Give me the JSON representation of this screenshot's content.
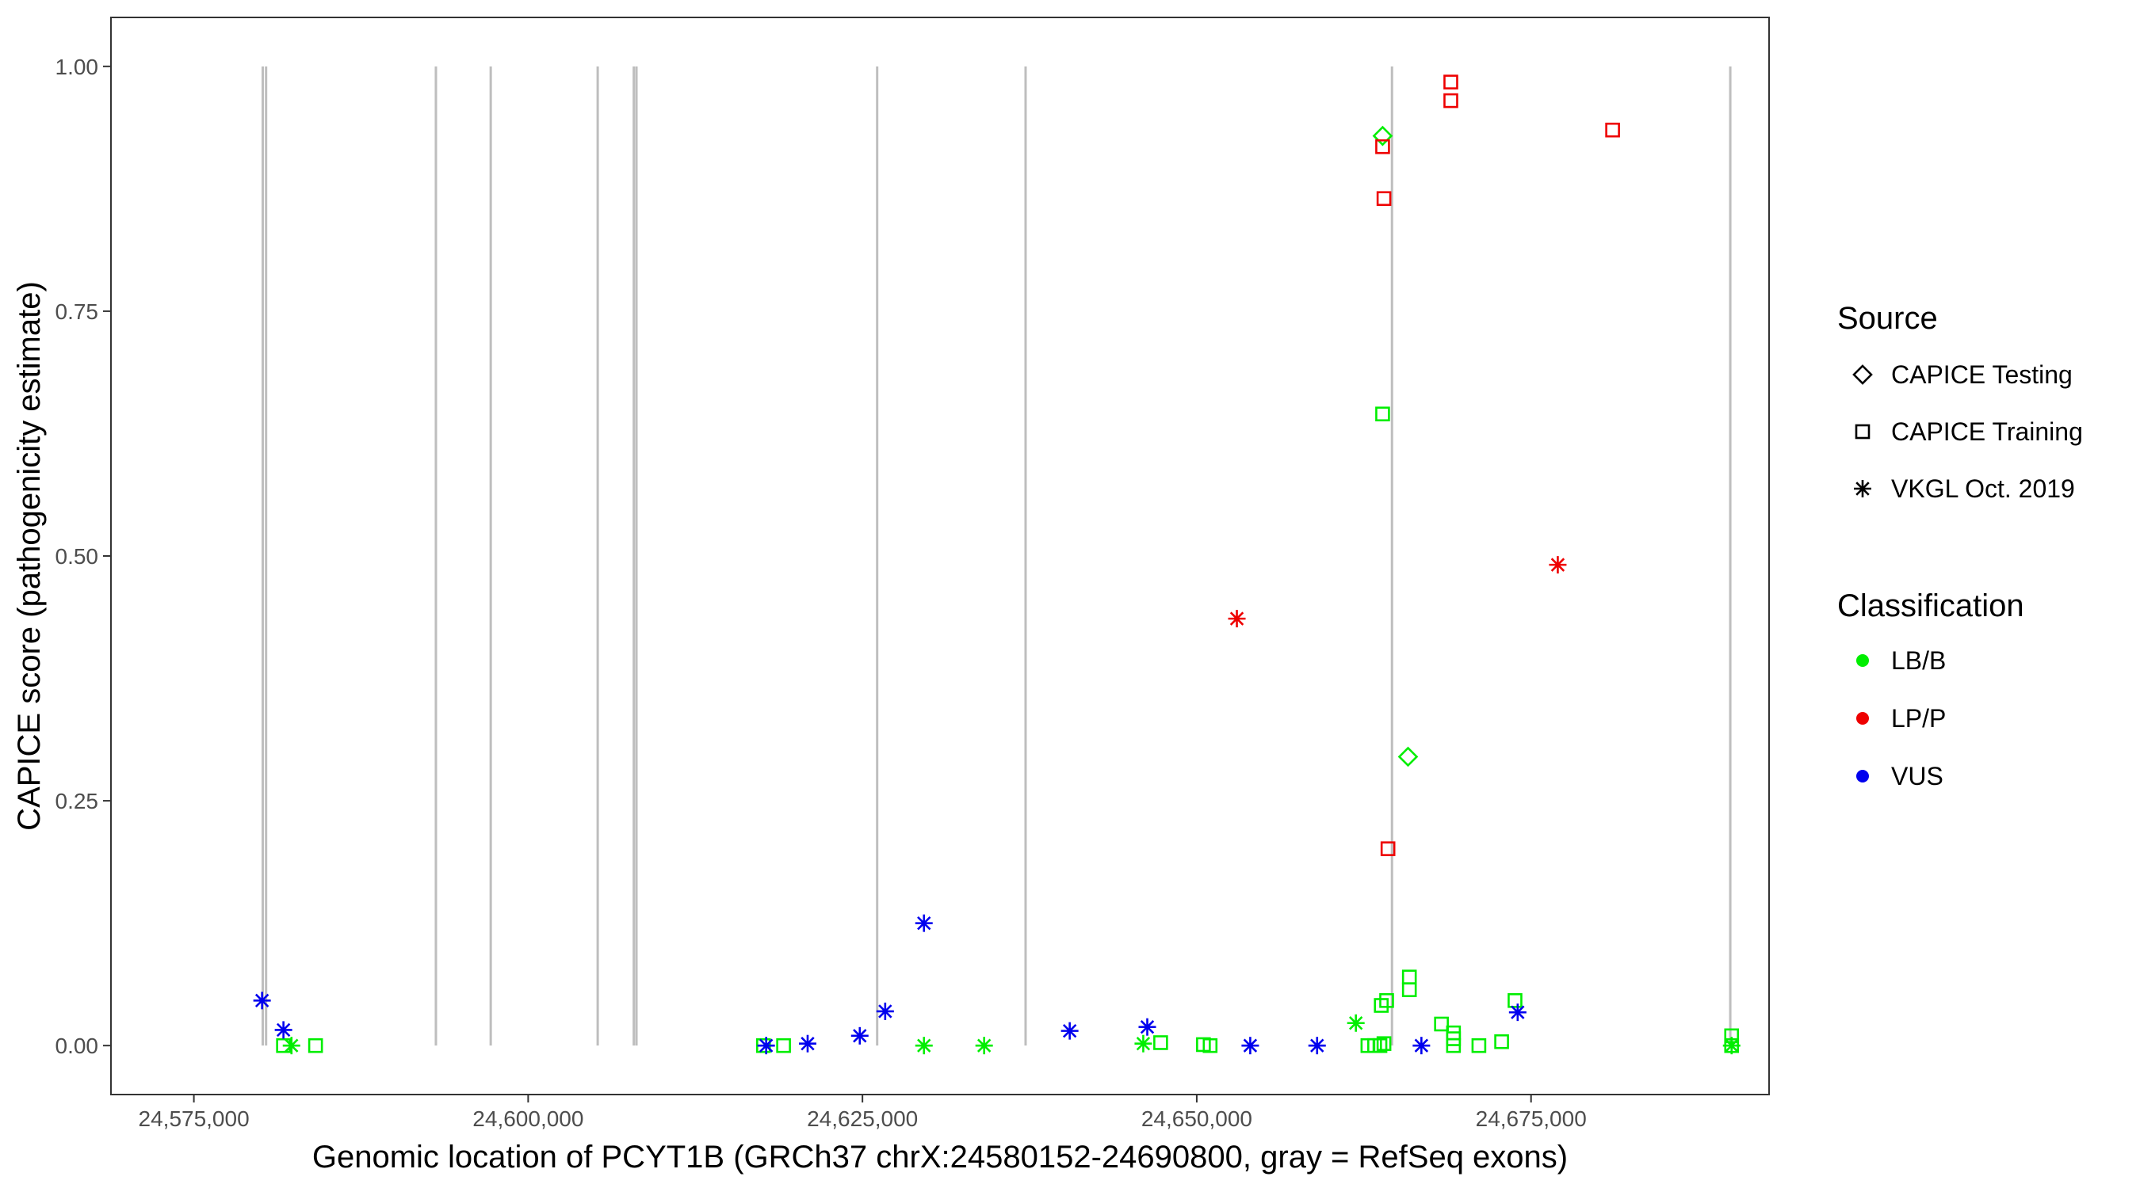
{
  "chart_data": {
    "type": "scatter",
    "xlabel": "Genomic location of PCYT1B (GRCh37 chrX:24580152-24690800, gray = RefSeq exons)",
    "ylabel": "CAPICE score (pathogenicity estimate)",
    "xlim": [
      24568800,
      24692800
    ],
    "ylim": [
      -0.05,
      1.05
    ],
    "x_ticks": [
      24575000,
      24600000,
      24625000,
      24650000,
      24675000
    ],
    "x_tick_labels": [
      "24,575,000",
      "24,600,000",
      "24,625,000",
      "24,650,000",
      "24,675,000"
    ],
    "y_ticks": [
      0,
      0.25,
      0.5,
      0.75,
      1.0
    ],
    "y_tick_labels": [
      "0.00",
      "0.25",
      "0.50",
      "0.75",
      "1.00"
    ],
    "grid": false,
    "legend_position": "right",
    "exon_lines": [
      {
        "x": 24580150,
        "y0": 0,
        "y1": 1
      },
      {
        "x": 24580400,
        "y0": 0,
        "y1": 1
      },
      {
        "x": 24593100,
        "y0": 0,
        "y1": 1
      },
      {
        "x": 24597200,
        "y0": 0,
        "y1": 1
      },
      {
        "x": 24605200,
        "y0": 0,
        "y1": 1
      },
      {
        "x": 24607900,
        "y0": 0,
        "y1": 1
      },
      {
        "x": 24608100,
        "y0": 0,
        "y1": 1
      },
      {
        "x": 24626100,
        "y0": 0,
        "y1": 1
      },
      {
        "x": 24637200,
        "y0": 0,
        "y1": 1
      },
      {
        "x": 24664600,
        "y0": 0,
        "y1": 1
      },
      {
        "x": 24689900,
        "y0": 0,
        "y1": 1
      }
    ],
    "legend": {
      "source_title": "Source",
      "source_items": [
        {
          "label": "CAPICE Testing",
          "shape": "diamond"
        },
        {
          "label": "CAPICE Training",
          "shape": "square"
        },
        {
          "label": "VKGL Oct. 2019",
          "shape": "asterisk"
        }
      ],
      "class_title": "Classification",
      "class_items": [
        {
          "label": "LB/B",
          "color": "#00ee00"
        },
        {
          "label": "LP/P",
          "color": "#ee0000"
        },
        {
          "label": "VUS",
          "color": "#0000ee"
        }
      ]
    },
    "colors": {
      "LB/B": "#00ee00",
      "LP/P": "#ee0000",
      "VUS": "#0000ee"
    },
    "series": [
      {
        "source": "CAPICE Testing",
        "shape": "diamond",
        "class": "LB/B",
        "points": [
          [
            24663900,
            0.929
          ],
          [
            24665800,
            0.295
          ]
        ]
      },
      {
        "source": "CAPICE Training",
        "shape": "square",
        "class": "LP/P",
        "points": [
          [
            24669000,
            0.984
          ],
          [
            24669000,
            0.965
          ],
          [
            24663900,
            0.918
          ],
          [
            24681100,
            0.935
          ],
          [
            24664000,
            0.865
          ],
          [
            24664300,
            0.201
          ]
        ]
      },
      {
        "source": "CAPICE Training",
        "shape": "square",
        "class": "LB/B",
        "points": [
          [
            24663900,
            0.645
          ],
          [
            24665900,
            0.07
          ],
          [
            24665900,
            0.057
          ],
          [
            24664200,
            0.046
          ],
          [
            24663800,
            0.041
          ],
          [
            24673800,
            0.046
          ],
          [
            24668300,
            0.022
          ],
          [
            24669200,
            0.013
          ],
          [
            24669200,
            0.007
          ],
          [
            24672800,
            0.004
          ],
          [
            24669200,
            0.0
          ],
          [
            24671100,
            0.0
          ],
          [
            24662800,
            0.0
          ],
          [
            24663300,
            0.0
          ],
          [
            24663700,
            0.0
          ],
          [
            24664000,
            0.002
          ],
          [
            24581700,
            0.0
          ],
          [
            24584100,
            0.0
          ],
          [
            24617600,
            0.0
          ],
          [
            24619100,
            0.0
          ],
          [
            24647300,
            0.003
          ],
          [
            24650500,
            0.001
          ],
          [
            24651000,
            0.0
          ],
          [
            24690000,
            0.01
          ],
          [
            24690000,
            0.0
          ]
        ]
      },
      {
        "source": "VKGL Oct. 2019",
        "shape": "asterisk",
        "class": "LP/P",
        "points": [
          [
            24677000,
            0.491
          ],
          [
            24653000,
            0.436
          ]
        ]
      },
      {
        "source": "VKGL Oct. 2019",
        "shape": "asterisk",
        "class": "VUS",
        "points": [
          [
            24580100,
            0.046
          ],
          [
            24581700,
            0.016
          ],
          [
            24629600,
            0.125
          ],
          [
            24626700,
            0.035
          ],
          [
            24624800,
            0.01
          ],
          [
            24640500,
            0.015
          ],
          [
            24646300,
            0.019
          ],
          [
            24674000,
            0.034
          ],
          [
            24617800,
            0.0
          ],
          [
            24620900,
            0.002
          ],
          [
            24654000,
            0.0
          ],
          [
            24659000,
            0.0
          ],
          [
            24666800,
            0.0
          ]
        ]
      },
      {
        "source": "VKGL Oct. 2019",
        "shape": "asterisk",
        "class": "LB/B",
        "points": [
          [
            24582300,
            0.0
          ],
          [
            24629600,
            0.0
          ],
          [
            24634100,
            0.0
          ],
          [
            24646000,
            0.002
          ],
          [
            24661900,
            0.023
          ],
          [
            24690000,
            0.0
          ]
        ]
      }
    ]
  }
}
